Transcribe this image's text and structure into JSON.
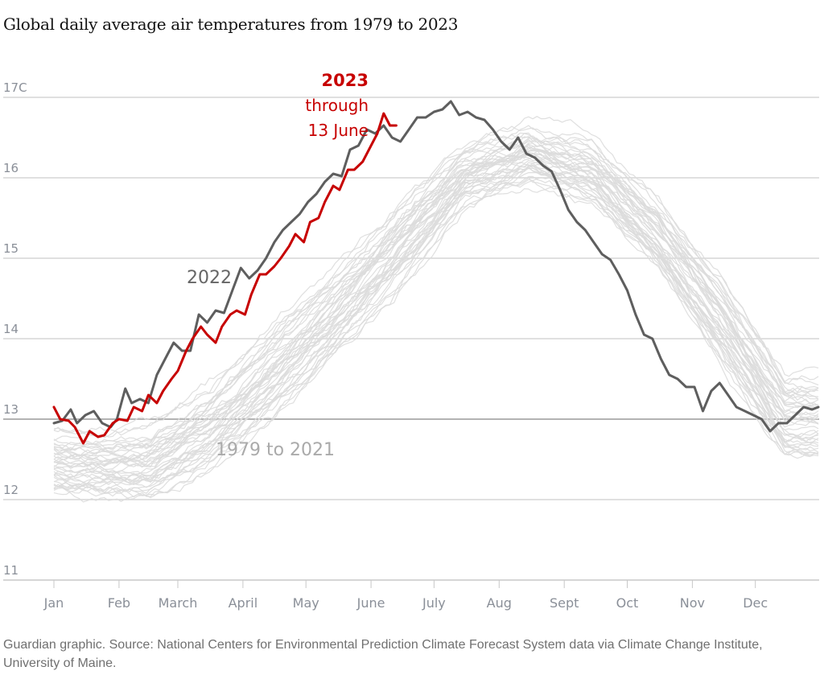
{
  "title": "Global daily average air temperatures from 1979 to 2023",
  "source": "Guardian graphic. Source: National Centers for Environmental Prediction Climate Forecast System data via Climate Change Institute, University of Maine.",
  "colors": {
    "series_2023": "#c70000",
    "series_2022": "#5e5e5e",
    "series_history": "#dcdcdc",
    "gridline": "#d6d6d6",
    "tick_text": "#8a8f98"
  },
  "annotations": {
    "label_2023_year": "2023",
    "label_2023_line1": "through",
    "label_2023_line2": "13 June",
    "label_2022": "2022",
    "label_history": "1979 to 2021"
  },
  "chart_data": {
    "type": "line",
    "title": "Global daily average air temperatures from 1979 to 2023",
    "xlabel": "",
    "ylabel": "",
    "y_unit": "C",
    "ylim": [
      11,
      17.3
    ],
    "xlim_day_of_year": [
      1,
      365
    ],
    "grid": true,
    "y_ticks": [
      {
        "value": 17,
        "label": "17C"
      },
      {
        "value": 16,
        "label": "16"
      },
      {
        "value": 15,
        "label": "15"
      },
      {
        "value": 14,
        "label": "14"
      },
      {
        "value": 13,
        "label": "13"
      },
      {
        "value": 12,
        "label": "12"
      },
      {
        "value": 11,
        "label": "11"
      }
    ],
    "x_ticks": [
      {
        "day": 1,
        "label": "Jan"
      },
      {
        "day": 32,
        "label": "Feb"
      },
      {
        "day": 60,
        "label": "March"
      },
      {
        "day": 91,
        "label": "April"
      },
      {
        "day": 121,
        "label": "May"
      },
      {
        "day": 152,
        "label": "June"
      },
      {
        "day": 182,
        "label": "July"
      },
      {
        "day": 213,
        "label": "Aug"
      },
      {
        "day": 244,
        "label": "Sept"
      },
      {
        "day": 274,
        "label": "Oct"
      },
      {
        "day": 305,
        "label": "Nov"
      },
      {
        "day": 335,
        "label": "Dec"
      }
    ],
    "series": [
      {
        "name": "2023",
        "note": "through 13 June",
        "day": [
          1,
          4,
          8,
          11,
          15,
          18,
          22,
          25,
          29,
          32,
          36,
          39,
          43,
          46,
          50,
          53,
          57,
          60,
          64,
          67,
          71,
          74,
          78,
          81,
          85,
          88,
          92,
          95,
          99,
          102,
          106,
          109,
          113,
          116,
          120,
          123,
          127,
          130,
          134,
          137,
          141,
          144,
          148,
          151,
          155,
          158,
          161,
          164
        ],
        "values": [
          13.15,
          13.0,
          12.98,
          12.9,
          12.7,
          12.85,
          12.78,
          12.8,
          12.95,
          13.0,
          12.98,
          13.15,
          13.1,
          13.3,
          13.2,
          13.35,
          13.5,
          13.6,
          13.85,
          14.0,
          14.15,
          14.05,
          13.95,
          14.15,
          14.3,
          14.35,
          14.3,
          14.55,
          14.8,
          14.8,
          14.9,
          15.0,
          15.15,
          15.3,
          15.2,
          15.45,
          15.5,
          15.7,
          15.9,
          15.85,
          16.1,
          16.1,
          16.2,
          16.35,
          16.55,
          16.8,
          16.65,
          16.65
        ]
      },
      {
        "name": "2022",
        "day": [
          1,
          5,
          9,
          12,
          16,
          20,
          24,
          28,
          31,
          35,
          38,
          42,
          46,
          50,
          54,
          58,
          62,
          66,
          70,
          74,
          78,
          82,
          86,
          90,
          94,
          98,
          102,
          106,
          110,
          114,
          118,
          122,
          126,
          130,
          134,
          138,
          142,
          146,
          150,
          154,
          158,
          162,
          166,
          170,
          174,
          178,
          182,
          186,
          190,
          194,
          198,
          202,
          206,
          210,
          214,
          218,
          222,
          226,
          230,
          234,
          238,
          242,
          246,
          250,
          254,
          258,
          262,
          266,
          270,
          274,
          278,
          282,
          286,
          290,
          294,
          298,
          302,
          306,
          310,
          314,
          318,
          322,
          326,
          330,
          334,
          338,
          342,
          346,
          350,
          354,
          358,
          362,
          365
        ],
        "values": [
          12.95,
          12.98,
          13.12,
          12.95,
          13.05,
          13.1,
          12.95,
          12.9,
          13.0,
          13.38,
          13.2,
          13.25,
          13.2,
          13.55,
          13.75,
          13.95,
          13.85,
          13.85,
          14.3,
          14.2,
          14.35,
          14.32,
          14.6,
          14.88,
          14.75,
          14.85,
          15.0,
          15.2,
          15.35,
          15.45,
          15.55,
          15.7,
          15.8,
          15.95,
          16.05,
          16.02,
          16.35,
          16.4,
          16.6,
          16.55,
          16.65,
          16.5,
          16.45,
          16.6,
          16.75,
          16.75,
          16.82,
          16.85,
          16.95,
          16.78,
          16.82,
          16.75,
          16.72,
          16.6,
          16.45,
          16.35,
          16.5,
          16.3,
          16.25,
          16.15,
          16.08,
          15.85,
          15.6,
          15.45,
          15.35,
          15.2,
          15.05,
          14.98,
          14.8,
          14.6,
          14.3,
          14.05,
          14.0,
          13.75,
          13.55,
          13.5,
          13.4,
          13.4,
          13.1,
          13.35,
          13.45,
          13.3,
          13.15,
          13.1,
          13.05,
          13.0,
          12.85,
          12.95,
          12.95,
          13.05,
          13.15,
          13.12,
          13.15
        ]
      },
      {
        "name": "1979 to 2021",
        "description": "One grey line per year, 43 years",
        "years": [
          1979,
          2021
        ],
        "approx_range_by_month": [
          {
            "month": "Jan",
            "low": 12.0,
            "high": 13.1
          },
          {
            "month": "Feb",
            "low": 11.95,
            "high": 13.15
          },
          {
            "month": "March",
            "low": 12.3,
            "high": 13.7
          },
          {
            "month": "April",
            "low": 12.9,
            "high": 14.5
          },
          {
            "month": "May",
            "low": 13.7,
            "high": 15.2
          },
          {
            "month": "June",
            "low": 14.6,
            "high": 16.0
          },
          {
            "month": "July",
            "low": 15.6,
            "high": 16.6
          },
          {
            "month": "Aug",
            "low": 15.9,
            "high": 16.85
          },
          {
            "month": "Sept",
            "low": 15.6,
            "high": 16.7
          },
          {
            "month": "Oct",
            "low": 14.8,
            "high": 16.0
          },
          {
            "month": "Nov",
            "low": 13.6,
            "high": 15.1
          },
          {
            "month": "Dec",
            "low": 12.4,
            "high": 13.9
          }
        ]
      }
    ]
  }
}
